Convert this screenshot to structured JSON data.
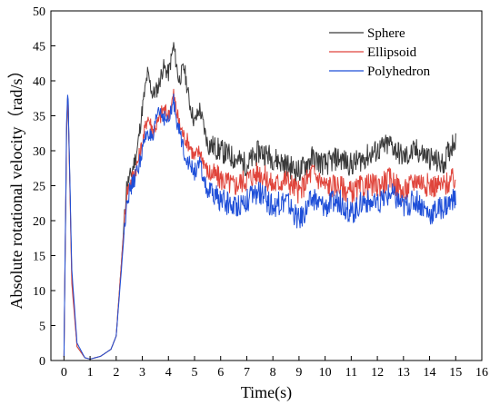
{
  "chart_data": {
    "type": "line",
    "title": "",
    "xlabel": "Time(s)",
    "ylabel": "Absolute rotational velocity（rad/s）",
    "xlim": [
      -0.5,
      16
    ],
    "ylim": [
      0,
      50
    ],
    "x_ticks": [
      0,
      1,
      2,
      3,
      4,
      5,
      6,
      7,
      8,
      9,
      10,
      11,
      12,
      13,
      14,
      15,
      16
    ],
    "y_ticks": [
      0,
      5,
      10,
      15,
      20,
      25,
      30,
      35,
      40,
      45,
      50
    ],
    "grid": false,
    "legend_position": "top-right",
    "series": [
      {
        "name": "Sphere",
        "color": "#3a3a3a",
        "x": [
          0,
          0.1,
          0.15,
          0.3,
          0.5,
          0.8,
          1.0,
          1.4,
          1.8,
          2.0,
          2.2,
          2.4,
          2.6,
          2.8,
          3.0,
          3.2,
          3.4,
          3.6,
          3.8,
          4.0,
          4.2,
          4.4,
          4.6,
          4.8,
          5.0,
          5.2,
          5.5,
          6.0,
          6.5,
          7.0,
          7.5,
          8.0,
          8.5,
          9.0,
          9.5,
          10.0,
          10.5,
          11.0,
          11.5,
          12.0,
          12.5,
          13.0,
          13.5,
          14.0,
          14.5,
          15.0
        ],
        "y": [
          0.5,
          32,
          39,
          12,
          2,
          0.4,
          0.2,
          0.6,
          1.6,
          3.5,
          14,
          25,
          27,
          30,
          36,
          41,
          38,
          39,
          42,
          41,
          45,
          40,
          42,
          37,
          34,
          36,
          31,
          30,
          29,
          28,
          30,
          29,
          28,
          27,
          29,
          28,
          29,
          28,
          29,
          30,
          31,
          29,
          30,
          29,
          28,
          32
        ]
      },
      {
        "name": "Ellipsoid",
        "color": "#e0453c",
        "x": [
          0,
          0.1,
          0.15,
          0.3,
          0.5,
          0.8,
          1.0,
          1.4,
          1.8,
          2.0,
          2.2,
          2.4,
          2.6,
          2.8,
          3.0,
          3.2,
          3.4,
          3.6,
          3.8,
          4.0,
          4.2,
          4.4,
          4.6,
          4.8,
          5.0,
          5.2,
          5.5,
          6.0,
          6.5,
          7.0,
          7.5,
          8.0,
          8.5,
          9.0,
          9.5,
          10.0,
          10.5,
          11.0,
          11.5,
          12.0,
          12.5,
          13.0,
          13.5,
          14.0,
          14.5,
          15.0
        ],
        "y": [
          0.5,
          33,
          38.5,
          11,
          2,
          0.4,
          0.2,
          0.6,
          1.6,
          3.5,
          14,
          24,
          26,
          28,
          31,
          35,
          33,
          34,
          36,
          35,
          38,
          34,
          32,
          31,
          29,
          30,
          27,
          26,
          25,
          26,
          27,
          25,
          26,
          24,
          27,
          25,
          25,
          24,
          25,
          25,
          26,
          24,
          26,
          25,
          25,
          26
        ]
      },
      {
        "name": "Polyhedron",
        "color": "#1f4fd8",
        "x": [
          0,
          0.1,
          0.15,
          0.3,
          0.5,
          0.8,
          1.0,
          1.4,
          1.8,
          2.0,
          2.2,
          2.4,
          2.6,
          2.8,
          3.0,
          3.2,
          3.4,
          3.6,
          3.8,
          4.0,
          4.2,
          4.4,
          4.6,
          4.8,
          5.0,
          5.2,
          5.5,
          6.0,
          6.5,
          7.0,
          7.5,
          8.0,
          8.5,
          9.0,
          9.5,
          10.0,
          10.5,
          11.0,
          11.5,
          12.0,
          12.5,
          13.0,
          13.5,
          14.0,
          14.5,
          15.0
        ],
        "y": [
          0.5,
          34,
          39,
          13,
          2.5,
          0.4,
          0.2,
          0.6,
          1.6,
          3.5,
          13,
          23,
          25,
          27,
          30,
          33,
          31,
          36,
          35,
          34,
          37,
          33,
          30,
          28,
          27,
          28,
          24,
          23,
          22,
          23,
          24,
          22,
          23,
          20,
          23,
          22,
          23,
          21,
          23,
          22,
          24,
          22,
          23,
          21,
          22,
          23
        ]
      }
    ]
  }
}
